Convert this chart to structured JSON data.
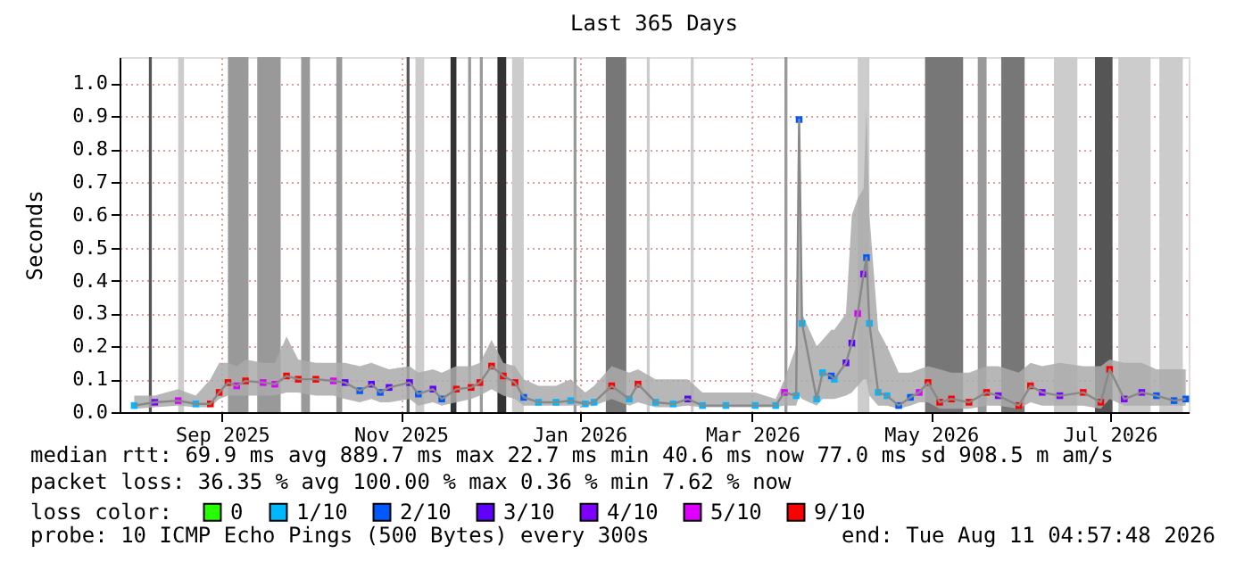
{
  "chart_data": {
    "type": "scatter",
    "title": "Last 365 Days",
    "ylabel": "Seconds",
    "legend_title": "loss color:",
    "legend": "bottom",
    "marker": "square",
    "grid": true,
    "xlim": [
      "2025-08-11",
      "2026-08-11"
    ],
    "xticks": [
      {
        "value": "2025-09-15",
        "label": "Sep 2025"
      },
      {
        "value": "2025-11-15",
        "label": "Nov 2025"
      },
      {
        "value": "2026-01-15",
        "label": "Jan 2026"
      },
      {
        "value": "2026-03-15",
        "label": "Mar 2026"
      },
      {
        "value": "2026-05-15",
        "label": "May 2026"
      },
      {
        "value": "2026-07-15",
        "label": "Jul 2026"
      }
    ],
    "ylim": [
      0,
      1.08
    ],
    "yticks": [
      {
        "value": 0,
        "label": "0.0"
      },
      {
        "value": 0.1,
        "label": "0.1"
      },
      {
        "value": 0.2,
        "label": "0.2"
      },
      {
        "value": 0.3,
        "label": "0.3"
      },
      {
        "value": 0.4,
        "label": "0.4"
      },
      {
        "value": 0.5,
        "label": "0.5"
      },
      {
        "value": 0.6,
        "label": "0.6"
      },
      {
        "value": 0.7,
        "label": "0.7"
      },
      {
        "value": 0.8,
        "label": "0.8"
      },
      {
        "value": 0.9,
        "label": "0.9"
      },
      {
        "value": 1,
        "label": "1.0"
      }
    ],
    "series": [
      {
        "type": "line",
        "marker": "none",
        "line_style": "solid",
        "color": "#888888",
        "x": [
          "2025-08-16",
          "2025-08-23",
          "2025-08-31",
          "2025-09-06",
          "2025-09-11",
          "2025-09-14",
          "2025-09-17",
          "2025-09-20",
          "2025-09-23",
          "2025-09-29",
          "2025-10-03",
          "2025-10-07",
          "2025-10-11",
          "2025-10-17",
          "2025-10-23",
          "2025-10-27",
          "2025-11-01",
          "2025-11-05",
          "2025-11-08",
          "2025-11-11",
          "2025-11-18",
          "2025-11-21",
          "2025-11-26",
          "2025-11-29",
          "2025-12-04",
          "2025-12-09",
          "2025-12-12",
          "2025-12-16",
          "2025-12-20",
          "2025-12-24",
          "2025-12-27",
          "2026-01-01",
          "2026-01-07",
          "2026-01-12",
          "2026-01-17",
          "2026-01-20",
          "2026-01-26",
          "2026-02-01",
          "2026-02-04",
          "2026-02-10",
          "2026-02-16",
          "2026-02-21",
          "2026-02-26",
          "2026-03-06",
          "2026-03-16",
          "2026-03-23",
          "2026-03-26",
          "2026-03-30",
          "2026-03-31",
          "2026-04-01",
          "2026-04-06",
          "2026-04-08",
          "2026-04-11",
          "2026-04-12",
          "2026-04-16",
          "2026-04-18",
          "2026-04-20",
          "2026-04-22",
          "2026-04-23",
          "2026-04-24",
          "2026-04-27",
          "2026-04-30",
          "2026-05-04",
          "2026-05-08",
          "2026-05-11",
          "2026-05-14",
          "2026-05-18",
          "2026-05-22",
          "2026-05-28",
          "2026-06-03",
          "2026-06-07",
          "2026-06-14",
          "2026-06-18",
          "2026-06-22",
          "2026-06-28",
          "2026-07-06",
          "2026-07-12",
          "2026-07-15",
          "2026-07-20",
          "2026-07-26",
          "2026-07-31",
          "2026-08-06",
          "2026-08-10"
        ],
        "values": [
          0.02,
          0.03,
          0.035,
          0.025,
          0.025,
          0.06,
          0.09,
          0.08,
          0.095,
          0.09,
          0.085,
          0.11,
          0.1,
          0.1,
          0.095,
          0.09,
          0.065,
          0.085,
          0.06,
          0.075,
          0.09,
          0.055,
          0.07,
          0.04,
          0.07,
          0.075,
          0.09,
          0.14,
          0.11,
          0.09,
          0.045,
          0.03,
          0.03,
          0.035,
          0.025,
          0.03,
          0.08,
          0.04,
          0.085,
          0.03,
          0.025,
          0.04,
          0.02,
          0.02,
          0.02,
          0.02,
          0.06,
          0.05,
          0.89,
          0.27,
          0.04,
          0.12,
          0.11,
          0.1,
          0.15,
          0.21,
          0.3,
          0.42,
          0.47,
          0.27,
          0.06,
          0.05,
          0.02,
          0.045,
          0.06,
          0.09,
          0.03,
          0.04,
          0.03,
          0.06,
          0.05,
          0.02,
          0.08,
          0.06,
          0.05,
          0.06,
          0.03,
          0.13,
          0.04,
          0.06,
          0.05,
          0.035,
          0.04
        ],
        "lower": [
          0.01,
          0.015,
          0.02,
          0.015,
          0.015,
          0.04,
          0.05,
          0.05,
          0.05,
          0.05,
          0.05,
          0.06,
          0.06,
          0.05,
          0.05,
          0.04,
          0.03,
          0.04,
          0.03,
          0.03,
          0.04,
          0.02,
          0.03,
          0.02,
          0.03,
          0.04,
          0.05,
          0.07,
          0.05,
          0.04,
          0.02,
          0.02,
          0.02,
          0.02,
          0.02,
          0.02,
          0.04,
          0.02,
          0.03,
          0.015,
          0.015,
          0.02,
          0.015,
          0.015,
          0.015,
          0.015,
          0.02,
          0.02,
          0.05,
          0.04,
          0.02,
          0.04,
          0.04,
          0.04,
          0.05,
          0.06,
          0.08,
          0.1,
          0.1,
          0.05,
          0.02,
          0.02,
          0.01,
          0.02,
          0.03,
          0.03,
          0.01,
          0.01,
          0.01,
          0.02,
          0.02,
          0.01,
          0.03,
          0.02,
          0.02,
          0.02,
          0.01,
          0.04,
          0.02,
          0.02,
          0.02,
          0.02,
          0.02
        ],
        "upper": [
          0.05,
          0.05,
          0.07,
          0.05,
          0.1,
          0.15,
          0.15,
          0.14,
          0.16,
          0.15,
          0.15,
          0.23,
          0.16,
          0.15,
          0.15,
          0.15,
          0.14,
          0.15,
          0.14,
          0.13,
          0.14,
          0.12,
          0.13,
          0.12,
          0.14,
          0.14,
          0.15,
          0.22,
          0.15,
          0.14,
          0.1,
          0.08,
          0.08,
          0.1,
          0.06,
          0.08,
          0.14,
          0.12,
          0.13,
          0.1,
          0.1,
          0.1,
          0.06,
          0.06,
          0.06,
          0.04,
          0.1,
          0.2,
          0.89,
          0.3,
          0.2,
          0.22,
          0.25,
          0.25,
          0.3,
          0.6,
          0.65,
          0.68,
          0.92,
          0.6,
          0.25,
          0.2,
          0.12,
          0.12,
          0.13,
          0.14,
          0.13,
          0.12,
          0.12,
          0.14,
          0.14,
          0.12,
          0.15,
          0.14,
          0.15,
          0.14,
          0.14,
          0.16,
          0.15,
          0.15,
          0.13,
          0.13,
          0.13
        ]
      },
      {
        "name": "0",
        "color": "#26ff00"
      },
      {
        "name": "1/10",
        "color": "#00b8ff",
        "x": [
          "2025-08-16",
          "2025-09-06",
          "2026-01-01",
          "2026-01-07",
          "2026-01-12",
          "2026-01-17",
          "2026-01-20",
          "2026-02-01",
          "2026-02-10",
          "2026-02-16",
          "2026-02-26",
          "2026-03-06",
          "2026-03-16",
          "2026-03-23",
          "2026-03-30",
          "2026-04-01",
          "2026-04-06",
          "2026-04-08",
          "2026-04-12",
          "2026-04-24",
          "2026-04-27",
          "2026-04-30"
        ],
        "values": [
          0.02,
          0.025,
          0.03,
          0.03,
          0.035,
          0.025,
          0.03,
          0.04,
          0.03,
          0.025,
          0.02,
          0.02,
          0.02,
          0.02,
          0.05,
          0.27,
          0.04,
          0.12,
          0.1,
          0.27,
          0.06,
          0.05
        ]
      },
      {
        "name": "2/10",
        "color": "#0059ff",
        "x": [
          "2025-11-01",
          "2025-11-08",
          "2025-11-21",
          "2025-11-29",
          "2025-12-27",
          "2026-03-31",
          "2026-04-11",
          "2026-04-23",
          "2026-05-04",
          "2026-05-08",
          "2026-07-31",
          "2026-08-06",
          "2026-08-10"
        ],
        "values": [
          0.065,
          0.06,
          0.055,
          0.04,
          0.045,
          0.89,
          0.11,
          0.47,
          0.02,
          0.045,
          0.05,
          0.035,
          0.04
        ]
      },
      {
        "name": "3/10",
        "color": "#5e00ff",
        "x": [
          "2025-10-27",
          "2025-11-05",
          "2025-11-11",
          "2025-11-18",
          "2025-11-26",
          "2026-02-21",
          "2026-04-16",
          "2026-04-18"
        ],
        "values": [
          0.09,
          0.085,
          0.075,
          0.09,
          0.07,
          0.04,
          0.15,
          0.21
        ]
      },
      {
        "name": "4/10",
        "color": "#7e00ff",
        "x": [
          "2025-08-23",
          "2026-04-22",
          "2026-06-07",
          "2026-06-22",
          "2026-06-28",
          "2026-07-20",
          "2026-07-26"
        ],
        "values": [
          0.03,
          0.42,
          0.05,
          0.06,
          0.05,
          0.04,
          0.06
        ]
      },
      {
        "name": "5/10",
        "color": "#dd00ff",
        "x": [
          "2025-08-31",
          "2025-09-20",
          "2025-09-29",
          "2025-10-03",
          "2025-10-23",
          "2026-03-26",
          "2026-04-20",
          "2026-05-11"
        ],
        "values": [
          0.035,
          0.08,
          0.09,
          0.085,
          0.095,
          0.06,
          0.3,
          0.06
        ]
      },
      {
        "name": "9/10",
        "color": "#ff0000",
        "x": [
          "2025-09-11",
          "2025-09-14",
          "2025-09-17",
          "2025-09-23",
          "2025-10-07",
          "2025-10-11",
          "2025-10-17",
          "2025-12-04",
          "2025-12-09",
          "2025-12-12",
          "2025-12-16",
          "2025-12-20",
          "2025-12-24",
          "2026-01-26",
          "2026-02-04",
          "2026-05-14",
          "2026-05-18",
          "2026-05-22",
          "2026-05-28",
          "2026-06-03",
          "2026-06-14",
          "2026-06-18",
          "2026-07-06",
          "2026-07-12",
          "2026-07-15"
        ],
        "values": [
          0.025,
          0.06,
          0.09,
          0.095,
          0.11,
          0.1,
          0.1,
          0.07,
          0.075,
          0.09,
          0.14,
          0.11,
          0.09,
          0.08,
          0.085,
          0.09,
          0.03,
          0.04,
          0.03,
          0.06,
          0.02,
          0.08,
          0.06,
          0.03,
          0.13
        ]
      }
    ],
    "bands": [
      {
        "axis": "x",
        "from": "2025-08-21",
        "to": "2025-08-22",
        "color": "#555555"
      },
      {
        "axis": "x",
        "from": "2025-08-31",
        "to": "2025-09-02",
        "color": "#cccccc"
      },
      {
        "axis": "x",
        "from": "2025-09-17",
        "to": "2025-09-24",
        "color": "#999999"
      },
      {
        "axis": "x",
        "from": "2025-09-27",
        "to": "2025-10-05",
        "color": "#999999"
      },
      {
        "axis": "x",
        "from": "2025-10-12",
        "to": "2025-10-15",
        "color": "#999999"
      },
      {
        "axis": "x",
        "from": "2025-10-24",
        "to": "2025-10-26",
        "color": "#999999"
      },
      {
        "axis": "x",
        "from": "2025-11-17",
        "to": "2025-11-18",
        "color": "#555555"
      },
      {
        "axis": "x",
        "from": "2025-11-20",
        "to": "2025-11-23",
        "color": "#cccccc"
      },
      {
        "axis": "x",
        "from": "2025-12-02",
        "to": "2025-12-04",
        "color": "#333333"
      },
      {
        "axis": "x",
        "from": "2025-12-08",
        "to": "2025-12-09",
        "color": "#999999"
      },
      {
        "axis": "x",
        "from": "2025-12-12",
        "to": "2025-12-13",
        "color": "#999999"
      },
      {
        "axis": "x",
        "from": "2025-12-18",
        "to": "2025-12-21",
        "color": "#333333"
      },
      {
        "axis": "x",
        "from": "2025-12-23",
        "to": "2025-12-27",
        "color": "#cccccc"
      },
      {
        "axis": "x",
        "from": "2026-01-13",
        "to": "2026-01-14",
        "color": "#999999"
      },
      {
        "axis": "x",
        "from": "2026-01-24",
        "to": "2026-01-31",
        "color": "#777777"
      },
      {
        "axis": "x",
        "from": "2026-02-07",
        "to": "2026-02-08",
        "color": "#cccccc"
      },
      {
        "axis": "x",
        "from": "2026-02-22",
        "to": "2026-02-23",
        "color": "#cccccc"
      },
      {
        "axis": "x",
        "from": "2026-03-26",
        "to": "2026-03-27",
        "color": "#999999"
      },
      {
        "axis": "x",
        "from": "2026-04-20",
        "to": "2026-04-24",
        "color": "#cccccc"
      },
      {
        "axis": "x",
        "from": "2026-05-13",
        "to": "2026-05-26",
        "color": "#777777"
      },
      {
        "axis": "x",
        "from": "2026-05-31",
        "to": "2026-06-03",
        "color": "#999999"
      },
      {
        "axis": "x",
        "from": "2026-06-08",
        "to": "2026-06-16",
        "color": "#777777"
      },
      {
        "axis": "x",
        "from": "2026-06-26",
        "to": "2026-07-04",
        "color": "#cccccc"
      },
      {
        "axis": "x",
        "from": "2026-07-10",
        "to": "2026-07-16",
        "color": "#555555"
      },
      {
        "axis": "x",
        "from": "2026-07-18",
        "to": "2026-07-29",
        "color": "#cccccc"
      },
      {
        "axis": "x",
        "from": "2026-08-01",
        "to": "2026-08-09",
        "color": "#cccccc"
      }
    ],
    "annotations": [
      "median rtt:  69.9 ms avg  889.7 ms max  22.7 ms min  40.6 ms now  77.0 ms sd  908.5 m am/s",
      "packet loss: 36.35 % avg  100.00 % max  0.36 % min  7.62 % now",
      "probe:       10 ICMP Echo Pings (500 Bytes) every 300s",
      "end: Tue Aug 11 04:57:48 2026"
    ]
  }
}
